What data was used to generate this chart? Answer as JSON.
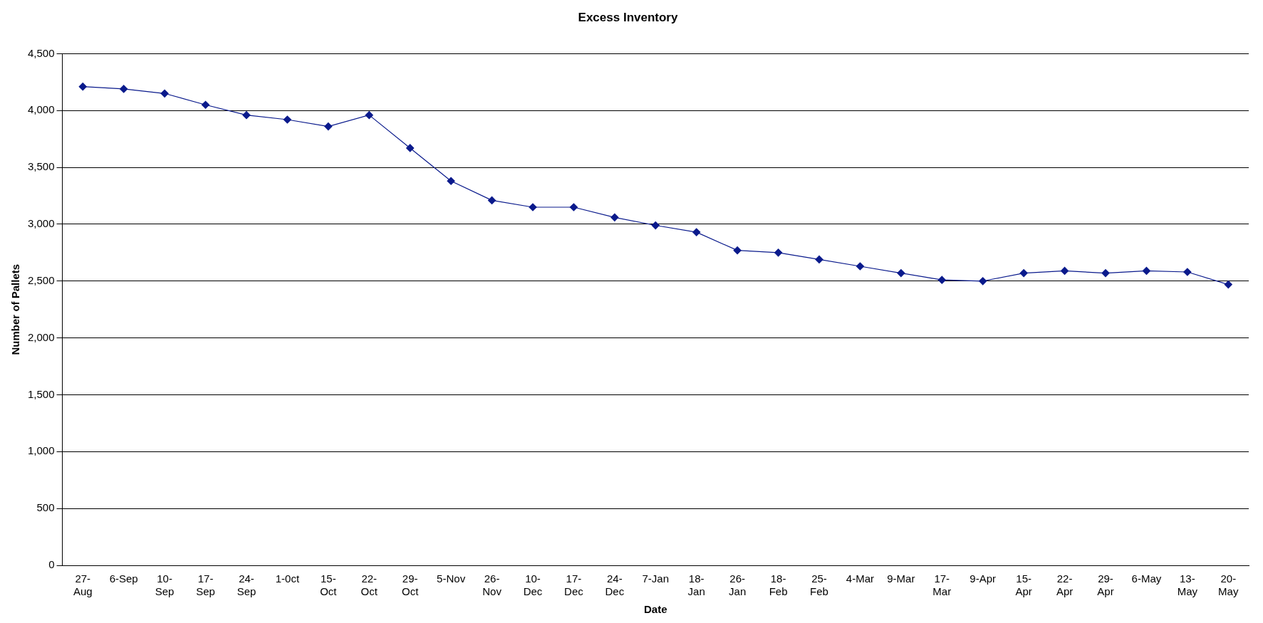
{
  "chart_data": {
    "type": "line",
    "title": "Excess Inventory",
    "xlabel": "Date",
    "ylabel": "Number of Pallets",
    "categories": [
      "27-Aug",
      "6-Sep",
      "10-Sep",
      "17-Sep",
      "24-Sep",
      "1-0ct",
      "15-Oct",
      "22-Oct",
      "29-Oct",
      "5-Nov",
      "26-Nov",
      "10-Dec",
      "17-Dec",
      "24-Dec",
      "7-Jan",
      "18-Jan",
      "26-Jan",
      "18-Feb",
      "25-Feb",
      "4-Mar",
      "9-Mar",
      "17-Mar",
      "9-Apr",
      "15-Apr",
      "22-Apr",
      "29-Apr",
      "6-May",
      "13-May",
      "20-May"
    ],
    "series": [
      {
        "color": "#0a1a8c",
        "values": [
          4210,
          4190,
          4150,
          4050,
          3960,
          3920,
          3860,
          3960,
          3670,
          3380,
          3210,
          3150,
          3150,
          3060,
          2990,
          2930,
          2770,
          2750,
          2690,
          2630,
          2570,
          2510,
          2500,
          2570,
          2590,
          2570,
          2590,
          2580,
          2470
        ]
      }
    ],
    "ylim": [
      0,
      4500
    ],
    "yticks": [
      0,
      500,
      {
        "value": 1000,
        "label": "1,000"
      },
      {
        "value": 1500,
        "label": "1,500"
      },
      {
        "value": 2000,
        "label": "2,000"
      },
      {
        "value": 2500,
        "label": "2,500"
      },
      {
        "value": 3000,
        "label": "3,000"
      },
      {
        "value": 3500,
        "label": "3,500"
      },
      {
        "value": 4000,
        "label": "4,000"
      },
      {
        "value": 4500,
        "label": "4,500"
      }
    ],
    "grid": "y",
    "marker": "diamond",
    "line_style": "solid"
  }
}
